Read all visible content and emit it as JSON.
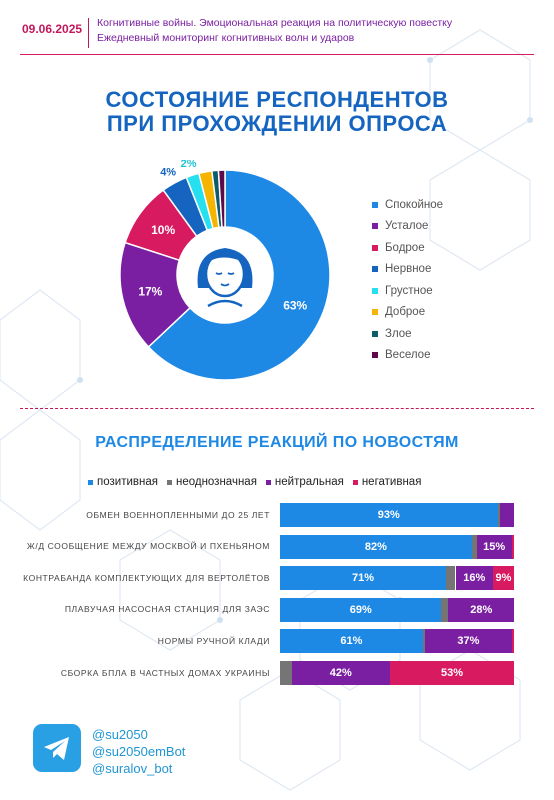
{
  "header": {
    "date": "09.06.2025",
    "line1": "Когнитивные войны. Эмоциональная реакция на политическую повестку",
    "line2": "Ежедневный мониторинг когнитивных волн и ударов"
  },
  "section1": {
    "title_line1": "СОСТОЯНИЕ РЕСПОНДЕНТОВ",
    "title_line2": "ПРИ ПРОХОЖДЕНИИ ОПРОСА"
  },
  "section2": {
    "title": "РАСПРЕДЕЛЕНИЕ РЕАКЦИЙ ПО НОВОСТЯМ"
  },
  "chart_data": [
    {
      "type": "pie",
      "labels": [
        "Спокойное",
        "Усталое",
        "Бодрое",
        "Нервное",
        "Грустное",
        "Доброе",
        "Злое",
        "Веселое"
      ],
      "values": [
        63,
        17,
        10,
        4,
        2,
        2,
        1,
        1
      ],
      "data_labels": [
        "63%",
        "17%",
        "10%",
        "4%",
        "2%",
        "",
        "",
        ""
      ],
      "colors": [
        "#1e88e5",
        "#7b1fa2",
        "#d81b60",
        "#1565c0",
        "#26e0f0",
        "#f5b400",
        "#0d5c6b",
        "#5c0a4a"
      ],
      "legend_position": "right"
    },
    {
      "type": "bar",
      "stacked": true,
      "orientation": "horizontal",
      "categories": [
        "ОБМЕН ВОЕННОПЛЕННЫМИ ДО 25 ЛЕТ",
        "Ж/Д СООБЩЕНИЕ МЕЖДУ МОСКВОЙ И ПХЕНЬЯНОМ",
        "КОНТРАБАНДА КОМПЛЕКТУЮЩИХ ДЛЯ ВЕРТОЛЁТОВ",
        "ПЛАВУЧАЯ НАСОСНАЯ СТАНЦИЯ ДЛЯ ЗАЭС",
        "НОРМЫ РУЧНОЙ КЛАДИ",
        "СБОРКА БПЛА В ЧАСТНЫХ ДОМАХ УКРАИНЫ"
      ],
      "series": [
        {
          "name": "позитивная",
          "color": "#1e88e5",
          "values": [
            93,
            82,
            71,
            69,
            61,
            0
          ],
          "labels": [
            "93%",
            "82%",
            "71%",
            "69%",
            "61%",
            ""
          ]
        },
        {
          "name": "неоднозначная",
          "color": "#757575",
          "values": [
            1,
            2,
            4,
            3,
            1,
            5
          ],
          "labels": [
            "",
            "",
            "",
            "",
            "",
            ""
          ]
        },
        {
          "name": "нейтральная",
          "color": "#7b1fa2",
          "values": [
            6,
            15,
            16,
            28,
            37,
            42
          ],
          "labels": [
            "",
            "15%",
            "16%",
            "28%",
            "37%",
            "42%"
          ]
        },
        {
          "name": "негативная",
          "color": "#d81b60",
          "values": [
            0,
            1,
            9,
            0,
            1,
            53
          ],
          "labels": [
            "",
            "",
            "9%",
            "",
            "",
            "53%"
          ]
        }
      ],
      "xlim": [
        0,
        100
      ],
      "legend_position": "top"
    }
  ],
  "footer": {
    "handles": [
      "@su2050",
      "@su2050emBot",
      "@suralov_bot"
    ],
    "icon": "telegram-icon"
  }
}
